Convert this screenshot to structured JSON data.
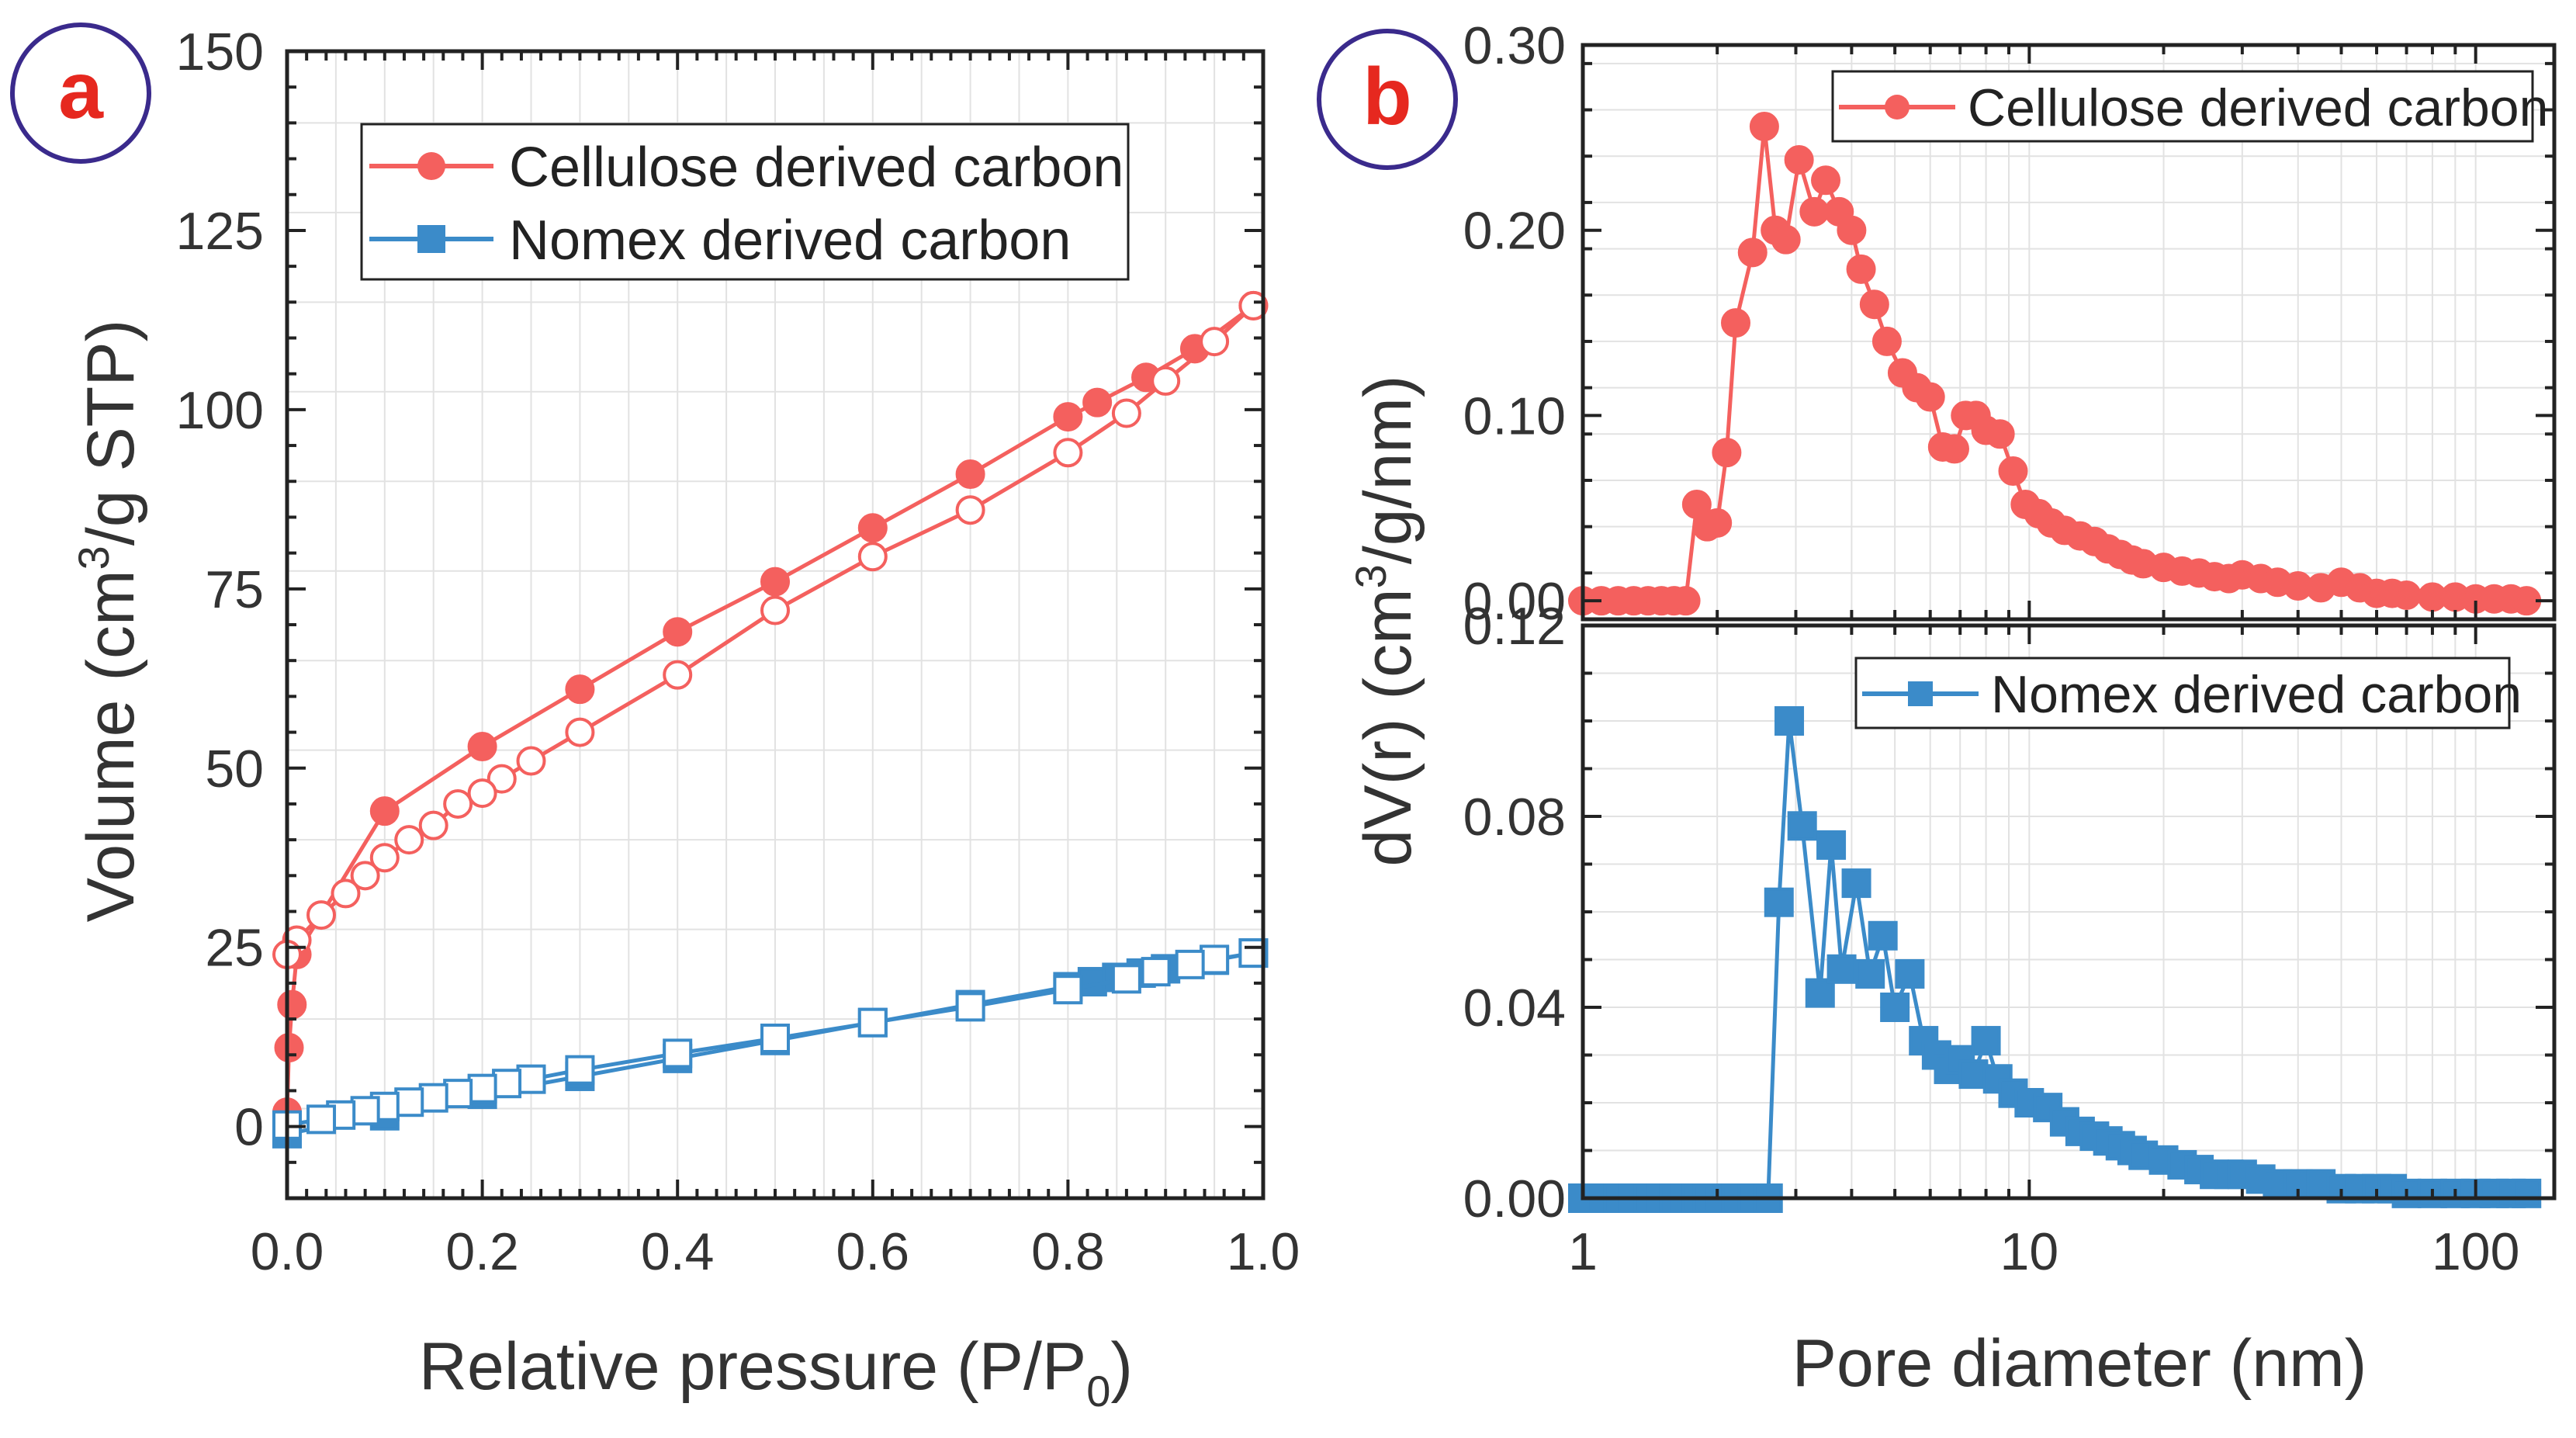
{
  "panels": {
    "a_label": "a",
    "b_label": "b"
  },
  "colors": {
    "cellulose": "#f4605e",
    "nomex": "#3b8bc9",
    "badge_ring": "#3a2a8c",
    "badge_text": "#e6281f",
    "axis": "#222222",
    "grid": "#e2e2e2"
  },
  "chart_data": [
    {
      "id": "a",
      "type": "line",
      "title": "",
      "xlabel": "Relative pressure (P/P0)",
      "xlabel_main": "Relative pressure (P/P",
      "xlabel_sub": "0",
      "xlabel_end": ")",
      "ylabel": "Volume (cm3/g STP)",
      "ylabel_main": "Volume (cm",
      "ylabel_sup": "3",
      "ylabel_end": "/g STP)",
      "xlim": [
        0,
        1.0
      ],
      "ylim": [
        -10,
        150
      ],
      "xticks": [
        0.0,
        0.2,
        0.4,
        0.6,
        0.8,
        1.0
      ],
      "xtick_labels": [
        "0.0",
        "0.2",
        "0.4",
        "0.6",
        "0.8",
        "1.0"
      ],
      "yticks": [
        0,
        25,
        50,
        75,
        100,
        125,
        150
      ],
      "ytick_labels": [
        "0",
        "25",
        "50",
        "75",
        "100",
        "125",
        "150"
      ],
      "legend": [
        "Cellulose derived carbon",
        "Nomex derived carbon"
      ],
      "legend_position": "top-right",
      "series": [
        {
          "name": "Cellulose derived carbon",
          "branch": "adsorption",
          "marker": "circle-filled",
          "x": [
            0.0,
            0.002,
            0.005,
            0.01,
            0.1,
            0.2,
            0.3,
            0.4,
            0.5,
            0.6,
            0.7,
            0.8,
            0.83,
            0.88,
            0.93,
            0.99
          ],
          "y": [
            2,
            11,
            17,
            24,
            44,
            53,
            61,
            69,
            76,
            83.5,
            91,
            99,
            101,
            104.5,
            108.5,
            114.5
          ]
        },
        {
          "name": "Cellulose derived carbon",
          "branch": "desorption",
          "marker": "circle-open",
          "x": [
            0.99,
            0.95,
            0.9,
            0.86,
            0.8,
            0.7,
            0.6,
            0.5,
            0.4,
            0.3,
            0.25,
            0.22,
            0.2,
            0.175,
            0.15,
            0.125,
            0.1,
            0.08,
            0.06,
            0.035,
            0.01,
            0.0
          ],
          "y": [
            114.5,
            109.5,
            104,
            99.5,
            94,
            86,
            79.5,
            72,
            63,
            55,
            51,
            48.5,
            46.5,
            45,
            42,
            40,
            37.5,
            35,
            32.5,
            29.5,
            26,
            24
          ]
        },
        {
          "name": "Nomex derived carbon",
          "branch": "adsorption",
          "marker": "square-filled",
          "x": [
            0.0,
            0.1,
            0.2,
            0.3,
            0.4,
            0.5,
            0.6,
            0.7,
            0.8,
            0.825,
            0.85,
            0.875,
            0.9,
            0.95,
            0.99
          ],
          "y": [
            -1,
            1.5,
            4.5,
            7,
            9.5,
            12,
            14.5,
            17,
            19.5,
            20.2,
            20.8,
            21.4,
            22,
            23.2,
            24.2
          ]
        },
        {
          "name": "Nomex derived carbon",
          "branch": "desorption",
          "marker": "square-open",
          "x": [
            0.99,
            0.95,
            0.925,
            0.89,
            0.86,
            0.8,
            0.7,
            0.6,
            0.5,
            0.4,
            0.3,
            0.25,
            0.225,
            0.2,
            0.175,
            0.15,
            0.125,
            0.1,
            0.08,
            0.055,
            0.035,
            0.0
          ],
          "y": [
            24.2,
            23.3,
            22.6,
            21.6,
            20.6,
            19.1,
            16.7,
            14.5,
            12.3,
            10.2,
            7.9,
            6.6,
            6.0,
            5.3,
            4.6,
            4.0,
            3.4,
            2.8,
            2.2,
            1.6,
            1.0,
            0.2
          ]
        }
      ]
    },
    {
      "id": "b-top",
      "type": "line",
      "title": "",
      "xscale": "log",
      "xlim": [
        1,
        150
      ],
      "ylim": [
        -0.01,
        0.3
      ],
      "yticks": [
        0.0,
        0.1,
        0.2,
        0.3
      ],
      "ytick_labels": [
        "0.00",
        "0.10",
        "0.20",
        "0.30"
      ],
      "legend": [
        "Cellulose derived carbon"
      ],
      "legend_position": "top-right",
      "series": [
        {
          "name": "Cellulose derived carbon",
          "marker": "circle-filled",
          "x": [
            1.0,
            1.1,
            1.2,
            1.3,
            1.4,
            1.5,
            1.6,
            1.7,
            1.8,
            1.9,
            2.0,
            2.1,
            2.2,
            2.4,
            2.55,
            2.7,
            2.85,
            3.05,
            3.3,
            3.5,
            3.75,
            4.0,
            4.2,
            4.5,
            4.8,
            5.2,
            5.6,
            6.0,
            6.4,
            6.8,
            7.2,
            7.6,
            8.0,
            8.6,
            9.2,
            9.8,
            10.5,
            11.2,
            12.0,
            13,
            14,
            15,
            16,
            17,
            18,
            20,
            22,
            24,
            26,
            28,
            30,
            33,
            36,
            40,
            45,
            50,
            55,
            60,
            65,
            70,
            80,
            90,
            100,
            110,
            120,
            130
          ],
          "y": [
            0.0,
            0.0,
            0.0,
            0.0,
            0.0,
            0.0,
            0.0,
            0.0,
            0.052,
            0.04,
            0.042,
            0.08,
            0.15,
            0.188,
            0.256,
            0.2,
            0.195,
            0.238,
            0.21,
            0.227,
            0.21,
            0.2,
            0.179,
            0.16,
            0.14,
            0.123,
            0.115,
            0.11,
            0.083,
            0.082,
            0.1,
            0.1,
            0.092,
            0.09,
            0.07,
            0.052,
            0.047,
            0.042,
            0.038,
            0.035,
            0.032,
            0.028,
            0.025,
            0.022,
            0.02,
            0.018,
            0.016,
            0.015,
            0.013,
            0.012,
            0.014,
            0.012,
            0.01,
            0.008,
            0.007,
            0.01,
            0.007,
            0.004,
            0.004,
            0.003,
            0.002,
            0.002,
            0.001,
            0.001,
            0.001,
            0.0
          ]
        }
      ]
    },
    {
      "id": "b-bottom",
      "type": "line",
      "title": "",
      "xscale": "log",
      "xlabel": "Pore diameter (nm)",
      "xlim": [
        1,
        150
      ],
      "ylim": [
        0,
        0.12
      ],
      "xticks": [
        1,
        10,
        100
      ],
      "xtick_labels": [
        "1",
        "10",
        "100"
      ],
      "yticks": [
        0.0,
        0.04,
        0.08,
        0.12
      ],
      "ytick_labels": [
        "0.00",
        "0.04",
        "0.08",
        "0.12"
      ],
      "legend": [
        "Nomex derived carbon"
      ],
      "legend_position": "top-right",
      "series": [
        {
          "name": "Nomex derived carbon",
          "marker": "square-filled",
          "x": [
            1.0,
            1.1,
            1.2,
            1.3,
            1.4,
            1.5,
            1.6,
            1.7,
            1.8,
            1.9,
            2.0,
            2.2,
            2.4,
            2.6,
            2.75,
            2.9,
            3.1,
            3.4,
            3.6,
            3.8,
            4.1,
            4.4,
            4.7,
            5.0,
            5.4,
            5.8,
            6.2,
            6.6,
            7.0,
            7.5,
            8.0,
            8.5,
            9.2,
            10,
            11,
            12,
            13,
            14,
            15,
            16,
            17,
            18,
            20,
            22,
            24,
            26,
            28,
            30,
            33,
            36,
            40,
            45,
            50,
            55,
            60,
            65,
            70,
            80,
            90,
            100,
            110,
            120,
            130
          ],
          "y": [
            0.0,
            0.0,
            0.0,
            0.0,
            0.0,
            0.0,
            0.0,
            0.0,
            0.0,
            0.0,
            0.0,
            0.0,
            0.0,
            0.0,
            0.062,
            0.1,
            0.078,
            0.043,
            0.074,
            0.048,
            0.066,
            0.047,
            0.055,
            0.04,
            0.047,
            0.033,
            0.03,
            0.027,
            0.029,
            0.026,
            0.033,
            0.025,
            0.022,
            0.02,
            0.019,
            0.016,
            0.014,
            0.013,
            0.012,
            0.011,
            0.01,
            0.009,
            0.008,
            0.007,
            0.006,
            0.005,
            0.005,
            0.005,
            0.004,
            0.003,
            0.003,
            0.003,
            0.002,
            0.002,
            0.002,
            0.002,
            0.001,
            0.001,
            0.001,
            0.001,
            0.001,
            0.001,
            0.001
          ]
        }
      ]
    }
  ],
  "shared": {
    "b_ylabel": "dV(r) (cm3/g/nm)",
    "b_ylabel_main": "dV(r) (cm",
    "b_ylabel_sup": "3",
    "b_ylabel_end": "/g/nm)"
  }
}
